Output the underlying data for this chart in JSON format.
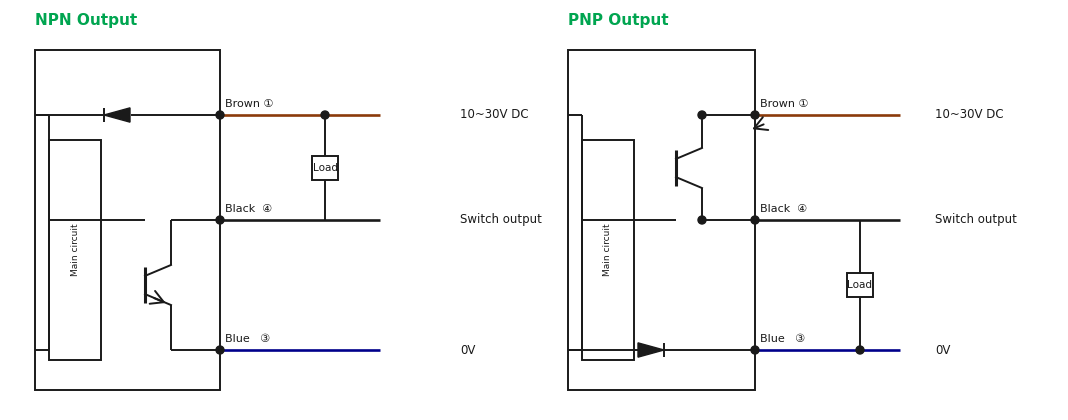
{
  "bg_color": "#ffffff",
  "line_color": "#1a1a1a",
  "brown_color": "#8B3A0A",
  "blue_color": "#00008B",
  "green_color": "#00A550",
  "title_npn": "NPN Output",
  "title_pnp": "PNP Output",
  "label_brown": "Brown ①",
  "label_black": "Black  ④",
  "label_blue": "Blue   ③",
  "label_dc": "10~30V DC",
  "label_ov": "0V",
  "label_switch": "Switch output",
  "label_load": "Load",
  "label_main": "Main circuit"
}
